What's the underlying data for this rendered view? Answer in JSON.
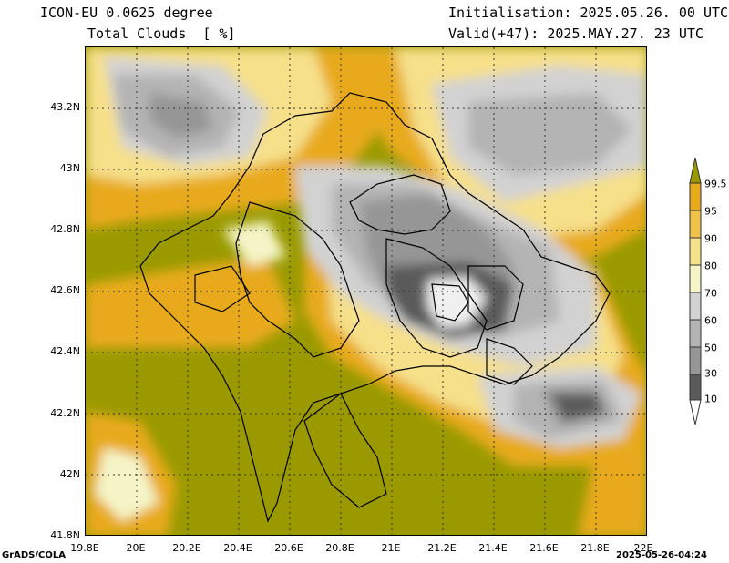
{
  "header": {
    "model": "ICON-EU 0.0625 degree",
    "field": "Total Clouds  [ %]",
    "initialisation": "Initialisation: 2025.05.26. 00 UTC",
    "valid": "Valid(+47): 2025.MAY.27. 23 UTC"
  },
  "axes": {
    "lat_labels": [
      "43.2N",
      "43N",
      "42.8N",
      "42.6N",
      "42.4N",
      "42.2N",
      "42N",
      "41.8N"
    ],
    "lon_labels": [
      "19.8E",
      "20E",
      "20.2E",
      "20.4E",
      "20.6E",
      "20.8E",
      "21E",
      "21.2E",
      "21.4E",
      "21.6E",
      "21.8E",
      "22E"
    ]
  },
  "colorbar": {
    "levels": [
      "99.5",
      "95",
      "90",
      "80",
      "70",
      "60",
      "50",
      "30",
      "10"
    ],
    "colors": {
      "top": "#9a9a00",
      "c95": "#e8aa1c",
      "c90": "#f1c24a",
      "c80": "#f6e08a",
      "c70": "#f5f5c8",
      "c60": "#d2d2d2",
      "c50": "#b4b4b4",
      "c30": "#969696",
      "c10": "#5a5a5a",
      "bottom": "#ffffff"
    }
  },
  "footer": {
    "left": "GrADS/COLA",
    "right": "2025-05-26-04:24"
  }
}
